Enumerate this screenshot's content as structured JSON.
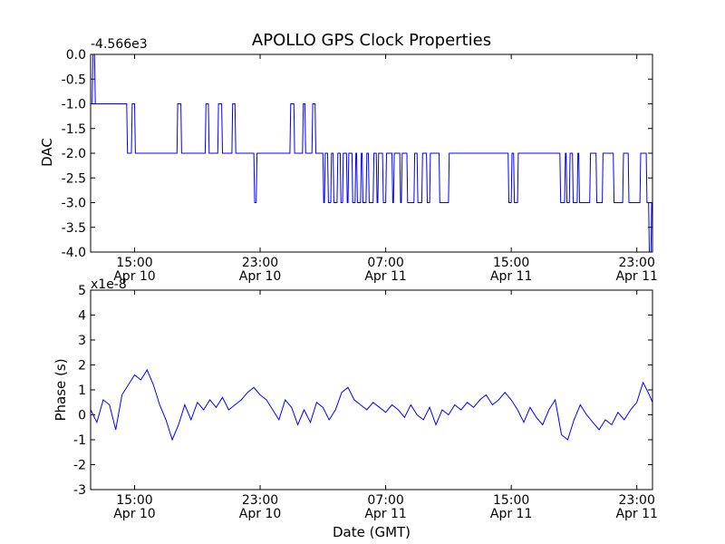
{
  "title": "APOLLO GPS Clock Properties",
  "xlabel": "Date (GMT)",
  "x_ticks": [
    {
      "time": "15:00",
      "day": "Apr 10",
      "hour": 15
    },
    {
      "time": "23:00",
      "day": "Apr 10",
      "hour": 23
    },
    {
      "time": "07:00",
      "day": "Apr 11",
      "hour": 31
    },
    {
      "time": "15:00",
      "day": "Apr 11",
      "hour": 39
    },
    {
      "time": "23:00",
      "day": "Apr 11",
      "hour": 47
    }
  ],
  "colors": {
    "line": "#0000ff",
    "axes": "#000000",
    "background": "#ffffff"
  },
  "chart_data": [
    {
      "type": "line",
      "ylabel": "DAC",
      "offset_label": "-4.566e3",
      "xlim_hours": [
        12.2,
        48.0
      ],
      "ylim": [
        -4.0,
        0.0
      ],
      "y_ticks": [
        "0.0",
        "-0.5",
        "-1.0",
        "-1.5",
        "-2.0",
        "-2.5",
        "-3.0",
        "-3.5",
        "-4.0"
      ],
      "y_tick_values": [
        0.0,
        -0.5,
        -1.0,
        -1.5,
        -2.0,
        -2.5,
        -3.0,
        -3.5,
        -4.0
      ],
      "series_hours": [
        12.2,
        12.3,
        12.35,
        12.45,
        12.5,
        12.6,
        12.65,
        14.5,
        14.55,
        14.8,
        14.85,
        15.0,
        15.05,
        17.7,
        17.75,
        17.95,
        18.0,
        19.5,
        19.55,
        19.7,
        19.75,
        20.3,
        20.35,
        20.55,
        20.6,
        21.2,
        21.25,
        21.4,
        21.45,
        22.6,
        22.65,
        22.75,
        22.8,
        24.9,
        24.95,
        25.15,
        25.2,
        25.7,
        25.75,
        25.85,
        25.9,
        26.3,
        26.35,
        26.5,
        26.55,
        27.0,
        27.05,
        27.1,
        27.15,
        27.3,
        27.35,
        27.5,
        27.55,
        27.65,
        27.7,
        27.9,
        27.95,
        28.1,
        28.15,
        28.25,
        28.3,
        28.5,
        28.55,
        28.6,
        28.65,
        28.85,
        28.9,
        29.05,
        29.1,
        29.15,
        29.2,
        29.4,
        29.45,
        29.5,
        29.55,
        29.75,
        29.8,
        29.9,
        29.95,
        30.2,
        30.25,
        30.4,
        30.45,
        30.5,
        30.55,
        30.8,
        30.85,
        31.0,
        31.05,
        31.4,
        31.45,
        31.5,
        31.55,
        31.9,
        31.95,
        32.0,
        32.05,
        32.35,
        32.4,
        32.8,
        32.85,
        33.0,
        33.05,
        33.3,
        33.35,
        33.6,
        33.65,
        33.8,
        33.85,
        34.4,
        34.45,
        35.0,
        35.05,
        38.8,
        38.85,
        39.0,
        39.05,
        39.15,
        39.2,
        39.4,
        39.45,
        42.1,
        42.15,
        42.4,
        42.45,
        42.5,
        42.55,
        42.7,
        42.75,
        42.9,
        42.95,
        43.2,
        43.25,
        43.3,
        43.35,
        44.0,
        44.05,
        44.4,
        44.45,
        44.8,
        44.85,
        45.5,
        45.55,
        46.1,
        46.15,
        46.45,
        46.5,
        47.2,
        47.25,
        47.6,
        47.65,
        47.75,
        47.8,
        47.9,
        47.95,
        48.0
      ],
      "series_values": [
        -1.0,
        -1.0,
        0.0,
        0.0,
        -1.0,
        -1.0,
        -1.0,
        -1.0,
        -2.0,
        -2.0,
        -1.0,
        -1.0,
        -2.0,
        -2.0,
        -1.0,
        -1.0,
        -2.0,
        -2.0,
        -1.0,
        -1.0,
        -2.0,
        -2.0,
        -1.0,
        -1.0,
        -2.0,
        -2.0,
        -1.0,
        -1.0,
        -2.0,
        -2.0,
        -3.0,
        -3.0,
        -2.0,
        -2.0,
        -1.0,
        -1.0,
        -2.0,
        -2.0,
        -1.0,
        -1.0,
        -2.0,
        -2.0,
        -1.0,
        -1.0,
        -2.0,
        -2.0,
        -3.0,
        -3.0,
        -2.0,
        -2.0,
        -3.0,
        -3.0,
        -2.0,
        -2.0,
        -3.0,
        -3.0,
        -2.0,
        -2.0,
        -3.0,
        -3.0,
        -2.0,
        -2.0,
        -3.0,
        -3.0,
        -2.0,
        -2.0,
        -3.0,
        -3.0,
        -2.0,
        -2.0,
        -3.0,
        -3.0,
        -2.0,
        -2.0,
        -3.0,
        -3.0,
        -2.0,
        -2.0,
        -3.0,
        -3.0,
        -2.0,
        -2.0,
        -3.0,
        -3.0,
        -2.0,
        -2.0,
        -3.0,
        -3.0,
        -2.0,
        -2.0,
        -3.0,
        -3.0,
        -2.0,
        -2.0,
        -3.0,
        -3.0,
        -2.0,
        -2.0,
        -3.0,
        -3.0,
        -2.0,
        -2.0,
        -3.0,
        -3.0,
        -2.0,
        -2.0,
        -3.0,
        -3.0,
        -2.0,
        -2.0,
        -3.0,
        -3.0,
        -2.0,
        -2.0,
        -3.0,
        -3.0,
        -2.0,
        -2.0,
        -3.0,
        -3.0,
        -2.0,
        -2.0,
        -3.0,
        -3.0,
        -2.0,
        -2.0,
        -3.0,
        -3.0,
        -2.0,
        -2.0,
        -3.0,
        -3.0,
        -2.0,
        -2.0,
        -3.0,
        -3.0,
        -2.0,
        -2.0,
        -3.0,
        -3.0,
        -2.0,
        -2.0,
        -3.0,
        -3.0,
        -2.0,
        -2.0,
        -3.0,
        -3.0,
        -2.0,
        -2.0,
        -3.0,
        -3.0,
        -4.0,
        -4.0,
        -3.0,
        -3.0,
        -4.0,
        -4.0,
        -3.0
      ]
    },
    {
      "type": "line",
      "ylabel": "Phase (s)",
      "offset_label": "x1e-8",
      "xlim_hours": [
        12.2,
        48.0
      ],
      "ylim": [
        -3,
        5
      ],
      "y_ticks": [
        "5",
        "4",
        "3",
        "2",
        "1",
        "0",
        "-1",
        "-2",
        "-3"
      ],
      "y_tick_values": [
        5,
        4,
        3,
        2,
        1,
        0,
        -1,
        -2,
        -3
      ],
      "series_hours": [
        12.2,
        12.6,
        13.0,
        13.4,
        13.8,
        14.2,
        14.6,
        15.0,
        15.4,
        15.8,
        16.2,
        16.6,
        17.0,
        17.4,
        17.8,
        18.2,
        18.6,
        19.0,
        19.4,
        19.8,
        20.2,
        20.6,
        21.0,
        21.4,
        21.8,
        22.2,
        22.6,
        23.0,
        23.4,
        23.8,
        24.2,
        24.6,
        25.0,
        25.4,
        25.8,
        26.2,
        26.6,
        27.0,
        27.4,
        27.8,
        28.2,
        28.6,
        29.0,
        29.4,
        29.8,
        30.2,
        30.6,
        31.0,
        31.4,
        31.8,
        32.2,
        32.6,
        33.0,
        33.4,
        33.8,
        34.2,
        34.6,
        35.0,
        35.4,
        35.8,
        36.2,
        36.6,
        37.0,
        37.4,
        37.8,
        38.2,
        38.6,
        39.0,
        39.4,
        39.8,
        40.2,
        40.6,
        41.0,
        41.4,
        41.8,
        42.2,
        42.6,
        43.0,
        43.4,
        43.8,
        44.2,
        44.6,
        45.0,
        45.4,
        45.8,
        46.2,
        46.6,
        47.0,
        47.4,
        47.8,
        48.0
      ],
      "series_values": [
        0.2,
        -0.3,
        0.6,
        0.4,
        -0.6,
        0.8,
        1.2,
        1.6,
        1.4,
        1.8,
        1.2,
        0.4,
        -0.2,
        -1.0,
        -0.4,
        0.4,
        -0.2,
        0.5,
        0.2,
        0.6,
        0.3,
        0.7,
        0.2,
        0.4,
        0.6,
        0.9,
        1.1,
        0.8,
        0.6,
        0.2,
        -0.2,
        0.6,
        0.3,
        -0.4,
        0.2,
        -0.3,
        0.5,
        0.3,
        -0.2,
        0.2,
        0.9,
        1.1,
        0.6,
        0.4,
        0.2,
        0.5,
        0.3,
        0.1,
        0.4,
        0.2,
        -0.1,
        0.4,
        0.0,
        -0.2,
        0.3,
        -0.4,
        0.2,
        0.0,
        0.4,
        0.2,
        0.5,
        0.3,
        0.6,
        0.8,
        0.4,
        0.6,
        0.9,
        0.6,
        0.2,
        -0.3,
        0.3,
        -0.1,
        -0.4,
        0.2,
        0.6,
        -0.8,
        -1.0,
        -0.2,
        0.4,
        0.0,
        -0.3,
        -0.6,
        -0.2,
        -0.4,
        0.1,
        -0.2,
        0.2,
        0.5,
        1.3,
        0.8,
        0.5
      ]
    }
  ]
}
